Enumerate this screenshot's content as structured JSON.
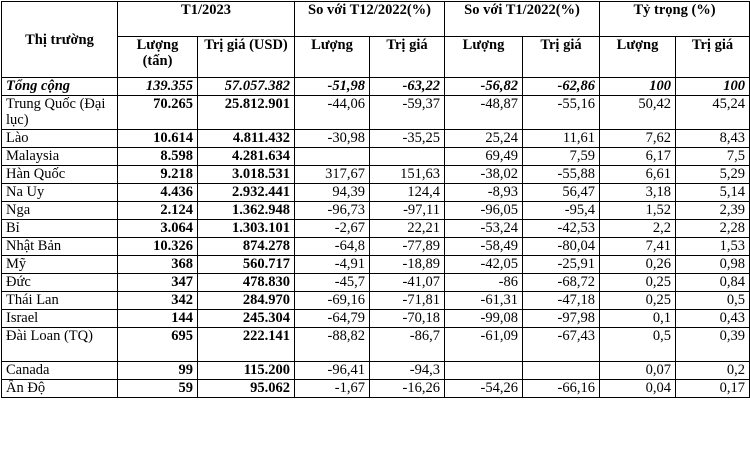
{
  "header": {
    "market": "Thị trường",
    "period": "T1/2023",
    "vs_prev_month": "So với T12/2022(%)",
    "vs_prev_year": "So với T1/2022(%)",
    "share": "Tỷ trọng (%)",
    "qty_unit": "Lượng (tấn)",
    "value_unit": "Trị giá (USD)",
    "qty": "Lượng",
    "value": "Trị giá"
  },
  "rows": [
    {
      "market": "Tổng cộng",
      "qty": "139.355",
      "value": "57.057.382",
      "m_qty": "-51,98",
      "m_val": "-63,22",
      "y_qty": "-56,82",
      "y_val": "-62,86",
      "s_qty": "100",
      "s_val": "100"
    },
    {
      "market": "Trung Quốc (Đại lục)",
      "qty": "70.265",
      "value": "25.812.901",
      "m_qty": "-44,06",
      "m_val": "-59,37",
      "y_qty": "-48,87",
      "y_val": "-55,16",
      "s_qty": "50,42",
      "s_val": "45,24"
    },
    {
      "market": "Lào",
      "qty": "10.614",
      "value": "4.811.432",
      "m_qty": "-30,98",
      "m_val": "-35,25",
      "y_qty": "25,24",
      "y_val": "11,61",
      "s_qty": "7,62",
      "s_val": "8,43"
    },
    {
      "market": "Malaysia",
      "qty": "8.598",
      "value": "4.281.634",
      "m_qty": "",
      "m_val": "",
      "y_qty": "69,49",
      "y_val": "7,59",
      "s_qty": "6,17",
      "s_val": "7,5"
    },
    {
      "market": "Hàn Quốc",
      "qty": "9.218",
      "value": "3.018.531",
      "m_qty": "317,67",
      "m_val": "151,63",
      "y_qty": "-38,02",
      "y_val": "-55,88",
      "s_qty": "6,61",
      "s_val": "5,29"
    },
    {
      "market": "Na Uy",
      "qty": "4.436",
      "value": "2.932.441",
      "m_qty": "94,39",
      "m_val": "124,4",
      "y_qty": "-8,93",
      "y_val": "56,47",
      "s_qty": "3,18",
      "s_val": "5,14"
    },
    {
      "market": "Nga",
      "qty": "2.124",
      "value": "1.362.948",
      "m_qty": "-96,73",
      "m_val": "-97,11",
      "y_qty": "-96,05",
      "y_val": "-95,4",
      "s_qty": "1,52",
      "s_val": "2,39"
    },
    {
      "market": "Bỉ",
      "qty": "3.064",
      "value": "1.303.101",
      "m_qty": "-2,67",
      "m_val": "22,21",
      "y_qty": "-53,24",
      "y_val": "-42,53",
      "s_qty": "2,2",
      "s_val": "2,28"
    },
    {
      "market": "Nhật Bản",
      "qty": "10.326",
      "value": "874.278",
      "m_qty": "-64,8",
      "m_val": "-77,89",
      "y_qty": "-58,49",
      "y_val": "-80,04",
      "s_qty": "7,41",
      "s_val": "1,53"
    },
    {
      "market": "Mỹ",
      "qty": "368",
      "value": "560.717",
      "m_qty": "-4,91",
      "m_val": "-18,89",
      "y_qty": "-42,05",
      "y_val": "-25,91",
      "s_qty": "0,26",
      "s_val": "0,98"
    },
    {
      "market": "Đức",
      "qty": "347",
      "value": "478.830",
      "m_qty": "-45,7",
      "m_val": "-41,07",
      "y_qty": "-86",
      "y_val": "-68,72",
      "s_qty": "0,25",
      "s_val": "0,84"
    },
    {
      "market": "Thái Lan",
      "qty": "342",
      "value": "284.970",
      "m_qty": "-69,16",
      "m_val": "-71,81",
      "y_qty": "-61,31",
      "y_val": "-47,18",
      "s_qty": "0,25",
      "s_val": "0,5"
    },
    {
      "market": "Israel",
      "qty": "144",
      "value": "245.304",
      "m_qty": "-64,79",
      "m_val": "-70,18",
      "y_qty": "-99,08",
      "y_val": "-97,98",
      "s_qty": "0,1",
      "s_val": "0,43"
    },
    {
      "market": "Đài Loan (TQ)",
      "qty": "695",
      "value": "222.141",
      "m_qty": "-88,82",
      "m_val": "-86,7",
      "y_qty": "-61,09",
      "y_val": "-67,43",
      "s_qty": "0,5",
      "s_val": "0,39"
    },
    {
      "market": "Canada",
      "qty": "99",
      "value": "115.200",
      "m_qty": "-96,41",
      "m_val": "-94,3",
      "y_qty": "",
      "y_val": "",
      "s_qty": "0,07",
      "s_val": "0,2"
    },
    {
      "market": "Ấn Độ",
      "qty": "59",
      "value": "95.062",
      "m_qty": "-1,67",
      "m_val": "-16,26",
      "y_qty": "-54,26",
      "y_val": "-66,16",
      "s_qty": "0,04",
      "s_val": "0,17"
    }
  ]
}
